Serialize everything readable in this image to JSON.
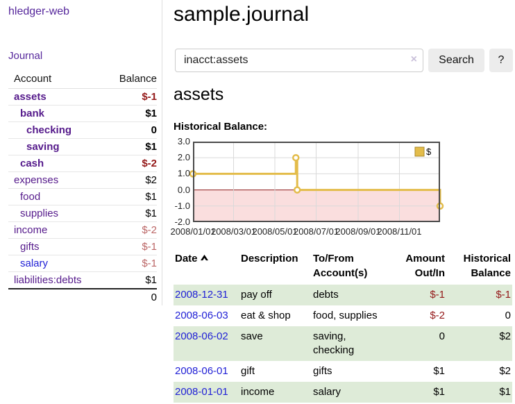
{
  "sidebar": {
    "brand": "hledger-web",
    "journal_link": "Journal",
    "account_header": "Account",
    "balance_header": "Balance",
    "rows": [
      {
        "account": "assets",
        "balance": "$-1"
      },
      {
        "account": "bank",
        "balance": "$1"
      },
      {
        "account": "checking",
        "balance": "0"
      },
      {
        "account": "saving",
        "balance": "$1"
      },
      {
        "account": "cash",
        "balance": "$-2"
      },
      {
        "account": "expenses",
        "balance": "$2"
      },
      {
        "account": "food",
        "balance": "$1"
      },
      {
        "account": "supplies",
        "balance": "$1"
      },
      {
        "account": "income",
        "balance": "$-2"
      },
      {
        "account": "gifts",
        "balance": "$-1"
      },
      {
        "account": "salary",
        "balance": "$-1"
      },
      {
        "account": "liabilities:debts",
        "balance": "$1"
      }
    ],
    "total": "0"
  },
  "header": {
    "title": "sample.journal"
  },
  "search": {
    "value": "inacct:assets",
    "clear_icon": "×",
    "search_button": "Search",
    "help_button": "?"
  },
  "account_page": {
    "heading": "assets",
    "chart_label": "Historical Balance:"
  },
  "chart_data": {
    "type": "line",
    "step": true,
    "title": "Historical Balance",
    "legend": [
      {
        "name": "$",
        "color": "#e3bc4a"
      }
    ],
    "legend_position": "top-right",
    "x_start": "2008-01-01",
    "x_end": "2008-12-31",
    "points": [
      {
        "date": "2008-01-01",
        "value": 1
      },
      {
        "date": "2008-06-01",
        "value": 2
      },
      {
        "date": "2008-06-03",
        "value": 0
      },
      {
        "date": "2008-12-31",
        "value": -1
      }
    ],
    "x_ticks": [
      {
        "date": "2008-01-01",
        "label": "2008/01/01"
      },
      {
        "date": "2008-03-01",
        "label": "2008/03/01"
      },
      {
        "date": "2008-05-01",
        "label": "2008/05/01"
      },
      {
        "date": "2008-07-01",
        "label": "2008/07/01"
      },
      {
        "date": "2008-09-01",
        "label": "2008/09/01"
      },
      {
        "date": "2008-11-01",
        "label": "2008/11/01"
      }
    ],
    "y_ticks": [
      "3.0",
      "2.0",
      "1.0",
      "0.0",
      "-1.0",
      "-2.0"
    ],
    "ylim": [
      -2,
      3
    ],
    "grid": true,
    "line_color": "#e3bc4a",
    "negative_region_color": "#fadede",
    "zero_line_color": "#8e1b1b"
  },
  "register": {
    "headers": {
      "date": "Date",
      "description": "Description",
      "accounts": "To/From Account(s)",
      "amount": "Amount Out/In",
      "balance": "Historical Balance"
    },
    "rows": [
      {
        "date": "2008-12-31",
        "description": "pay off",
        "accounts": "debts",
        "amount": "$-1",
        "balance": "$-1"
      },
      {
        "date": "2008-06-03",
        "description": "eat & shop",
        "accounts": "food, supplies",
        "amount": "$-2",
        "balance": "0"
      },
      {
        "date": "2008-06-02",
        "description": "save",
        "accounts": "saving, checking",
        "amount": "0",
        "balance": "$2"
      },
      {
        "date": "2008-06-01",
        "description": "gift",
        "accounts": "gifts",
        "amount": "$1",
        "balance": "$2"
      },
      {
        "date": "2008-01-01",
        "description": "income",
        "accounts": "salary",
        "amount": "$1",
        "balance": "$1"
      }
    ]
  },
  "colors": {
    "link_purple": "#551a8b",
    "link_blue": "#2121d6",
    "negative_dark": "#941919",
    "negative_light": "#bb6666",
    "row_stripe_green": "#deebd8",
    "chart_line_gold": "#e3bc4a",
    "chart_negative_fill": "#fadede",
    "chart_zero_line": "#8e1b1b"
  }
}
